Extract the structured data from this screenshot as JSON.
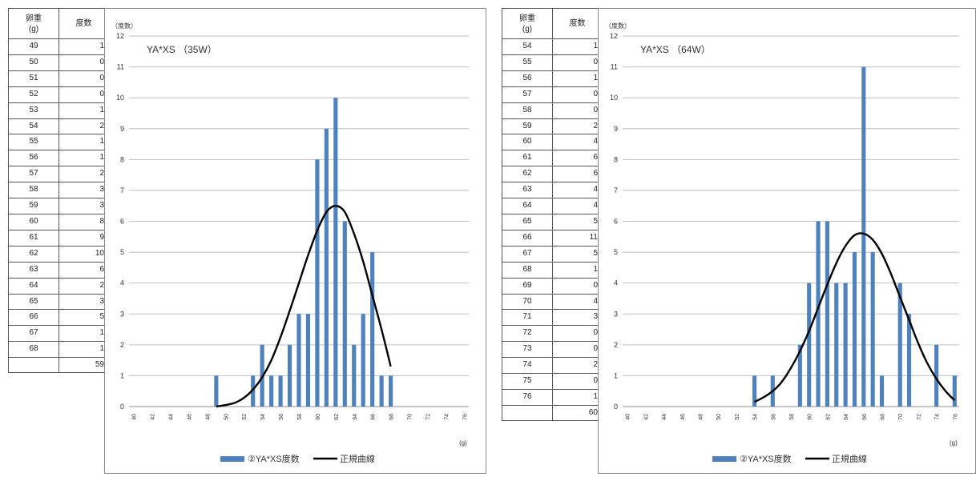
{
  "tables": [
    {
      "header": {
        "weight": "卵重\n(g)",
        "count": "度数"
      },
      "rows": [
        [
          "49",
          "1"
        ],
        [
          "50",
          "0"
        ],
        [
          "51",
          "0"
        ],
        [
          "52",
          "0"
        ],
        [
          "53",
          "1"
        ],
        [
          "54",
          "2"
        ],
        [
          "55",
          "1"
        ],
        [
          "56",
          "1"
        ],
        [
          "57",
          "2"
        ],
        [
          "58",
          "3"
        ],
        [
          "59",
          "3"
        ],
        [
          "60",
          "8"
        ],
        [
          "61",
          "9"
        ],
        [
          "62",
          "10"
        ],
        [
          "63",
          "6"
        ],
        [
          "64",
          "2"
        ],
        [
          "65",
          "3"
        ],
        [
          "66",
          "5"
        ],
        [
          "67",
          "1"
        ],
        [
          "68",
          "1"
        ]
      ],
      "total": "59"
    },
    {
      "header": {
        "weight": "卵重\n(g)",
        "count": "度数"
      },
      "rows": [
        [
          "54",
          "1"
        ],
        [
          "55",
          "0"
        ],
        [
          "56",
          "1"
        ],
        [
          "57",
          "0"
        ],
        [
          "58",
          "0"
        ],
        [
          "59",
          "2"
        ],
        [
          "60",
          "4"
        ],
        [
          "61",
          "6"
        ],
        [
          "62",
          "6"
        ],
        [
          "63",
          "4"
        ],
        [
          "64",
          "4"
        ],
        [
          "65",
          "5"
        ],
        [
          "66",
          "11"
        ],
        [
          "67",
          "5"
        ],
        [
          "68",
          "1"
        ],
        [
          "69",
          "0"
        ],
        [
          "70",
          "4"
        ],
        [
          "71",
          "3"
        ],
        [
          "72",
          "0"
        ],
        [
          "73",
          "0"
        ],
        [
          "74",
          "2"
        ],
        [
          "75",
          "0"
        ],
        [
          "76",
          "1"
        ]
      ],
      "total": "60"
    }
  ],
  "colors": {
    "bar": "#4f81bd",
    "curve": "#000000",
    "grid": "#bfbfbf"
  },
  "chart_data": [
    {
      "type": "bar",
      "title": "YA*XS （35W）",
      "ylabel": "（度数）",
      "xlabel": "(g)",
      "ylim": [
        0,
        12
      ],
      "xlim": [
        40,
        76
      ],
      "yticks": [
        0,
        1,
        2,
        3,
        4,
        5,
        6,
        7,
        8,
        9,
        10,
        11,
        12
      ],
      "xticks": [
        40,
        42,
        44,
        46,
        48,
        50,
        52,
        54,
        56,
        58,
        60,
        62,
        64,
        66,
        68,
        70,
        72,
        74,
        76
      ],
      "grid": true,
      "legend_position": "bottom",
      "series": [
        {
          "name": "②YA*XS度数",
          "kind": "bar",
          "x": [
            49,
            50,
            51,
            52,
            53,
            54,
            55,
            56,
            57,
            58,
            59,
            60,
            61,
            62,
            63,
            64,
            65,
            66,
            67,
            68
          ],
          "values": [
            1,
            0,
            0,
            0,
            1,
            2,
            1,
            1,
            2,
            3,
            3,
            8,
            9,
            10,
            6,
            2,
            3,
            5,
            1,
            1
          ]
        },
        {
          "name": "正規曲線",
          "kind": "line",
          "x": [
            49,
            50,
            51,
            52,
            53,
            54,
            55,
            56,
            57,
            58,
            59,
            60,
            61,
            62,
            63,
            64,
            65,
            66,
            67,
            68
          ],
          "values": [
            0,
            0.05,
            0.12,
            0.28,
            0.55,
            0.95,
            1.5,
            2.25,
            3.1,
            4.0,
            4.9,
            5.7,
            6.3,
            6.5,
            6.3,
            5.6,
            4.7,
            3.6,
            2.5,
            1.3
          ]
        }
      ]
    },
    {
      "type": "bar",
      "title": "YA*XS （64W）",
      "ylabel": "（度数）",
      "xlabel": "(g)",
      "ylim": [
        0,
        12
      ],
      "xlim": [
        40,
        76
      ],
      "yticks": [
        0,
        1,
        2,
        3,
        4,
        5,
        6,
        7,
        8,
        9,
        10,
        11,
        12
      ],
      "xticks": [
        40,
        42,
        44,
        46,
        48,
        50,
        52,
        54,
        56,
        58,
        60,
        62,
        64,
        66,
        68,
        70,
        72,
        74,
        76
      ],
      "grid": true,
      "legend_position": "bottom",
      "series": [
        {
          "name": "②YA*XS度数",
          "kind": "bar",
          "x": [
            54,
            55,
            56,
            57,
            58,
            59,
            60,
            61,
            62,
            63,
            64,
            65,
            66,
            67,
            68,
            69,
            70,
            71,
            72,
            73,
            74,
            75,
            76
          ],
          "values": [
            1,
            0,
            1,
            0,
            0,
            2,
            4,
            6,
            6,
            4,
            4,
            5,
            11,
            5,
            1,
            0,
            4,
            3,
            0,
            0,
            2,
            0,
            1
          ]
        },
        {
          "name": "正規曲線",
          "kind": "line",
          "x": [
            54,
            55,
            56,
            57,
            58,
            59,
            60,
            61,
            62,
            63,
            64,
            65,
            66,
            67,
            68,
            69,
            70,
            71,
            72,
            73,
            74,
            75,
            76
          ],
          "values": [
            0.15,
            0.3,
            0.5,
            0.8,
            1.25,
            1.8,
            2.45,
            3.2,
            3.95,
            4.65,
            5.2,
            5.55,
            5.6,
            5.4,
            4.95,
            4.3,
            3.55,
            2.8,
            2.05,
            1.4,
            0.9,
            0.5,
            0.2
          ]
        }
      ]
    }
  ]
}
